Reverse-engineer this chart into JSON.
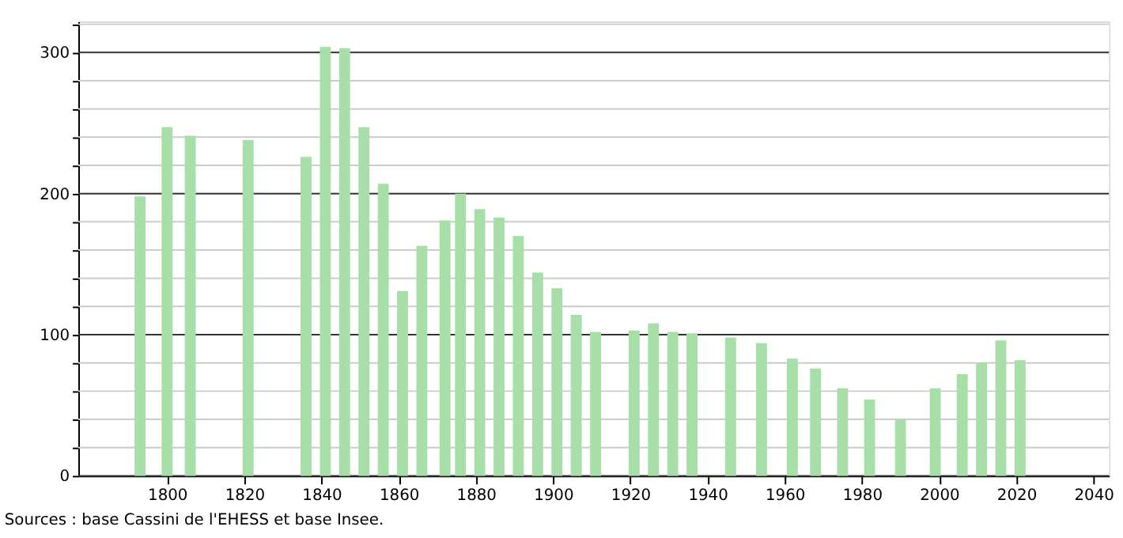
{
  "chart_data": {
    "type": "bar",
    "x": [
      1793,
      1800,
      1806,
      1821,
      1836,
      1841,
      1846,
      1851,
      1856,
      1861,
      1866,
      1872,
      1876,
      1881,
      1886,
      1891,
      1896,
      1901,
      1906,
      1911,
      1921,
      1926,
      1931,
      1936,
      1946,
      1954,
      1962,
      1968,
      1975,
      1982,
      1990,
      1999,
      2006,
      2011,
      2016,
      2021
    ],
    "values": [
      198,
      247,
      241,
      238,
      226,
      304,
      303,
      247,
      207,
      131,
      163,
      181,
      200,
      189,
      183,
      170,
      144,
      133,
      114,
      102,
      103,
      108,
      102,
      101,
      98,
      94,
      83,
      76,
      62,
      54,
      40,
      62,
      72,
      80,
      96,
      82
    ],
    "color": "#a8dfa8",
    "xlim": [
      1777,
      2044
    ],
    "xticks": [
      1800,
      1820,
      1840,
      1860,
      1880,
      1900,
      1920,
      1940,
      1960,
      1980,
      2000,
      2020,
      2040
    ],
    "ylim": [
      0,
      322
    ],
    "yticks": [
      0,
      {
        "value": 20,
        "label": null
      },
      {
        "value": 40,
        "label": null
      },
      {
        "value": 60,
        "label": null
      },
      {
        "value": 80,
        "label": null
      },
      100,
      {
        "value": 120,
        "label": null
      },
      {
        "value": 140,
        "label": null
      },
      {
        "value": 160,
        "label": null
      },
      {
        "value": 180,
        "label": null
      },
      200,
      {
        "value": 220,
        "label": null
      },
      {
        "value": 240,
        "label": null
      },
      {
        "value": 260,
        "label": null
      },
      {
        "value": 280,
        "label": null
      },
      300,
      {
        "value": 320,
        "label": null
      }
    ],
    "grid": "y",
    "annotations": [
      "Sources : base Cassini de l'EHESS et base Insee."
    ]
  }
}
